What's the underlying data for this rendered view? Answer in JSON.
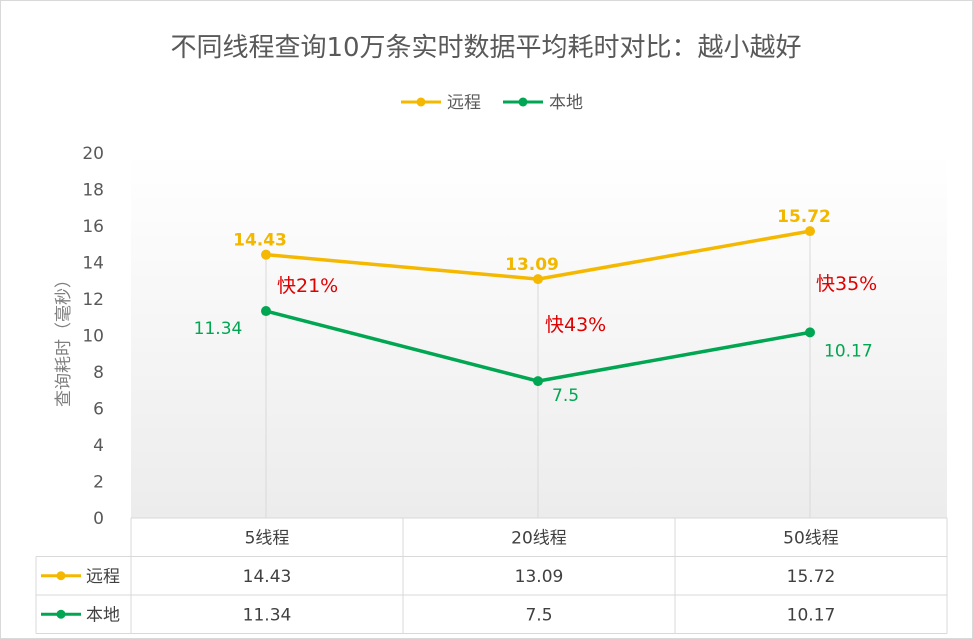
{
  "chart_data": {
    "type": "line",
    "title": "不同线程查询10万条实时数据平均耗时对比：越小越好",
    "ylabel": "查询耗时（毫秒）",
    "xlabel": "",
    "ylim": [
      0,
      20
    ],
    "yticks": [
      0,
      2,
      4,
      6,
      8,
      10,
      12,
      14,
      16,
      18,
      20
    ],
    "categories": [
      "5线程",
      "20线程",
      "50线程"
    ],
    "series": [
      {
        "name": "远程",
        "values": [
          14.43,
          13.09,
          15.72
        ],
        "color": "#f5b800",
        "labels": [
          "14.43",
          "13.09",
          "15.72"
        ]
      },
      {
        "name": "本地",
        "values": [
          11.34,
          7.5,
          10.17
        ],
        "color": "#00a651",
        "labels": [
          "11.34",
          "7.5",
          "10.17"
        ]
      }
    ],
    "annotations": [
      "快21%",
      "快43%",
      "快35%"
    ],
    "legend": "top",
    "grid": false,
    "data_table": true
  }
}
